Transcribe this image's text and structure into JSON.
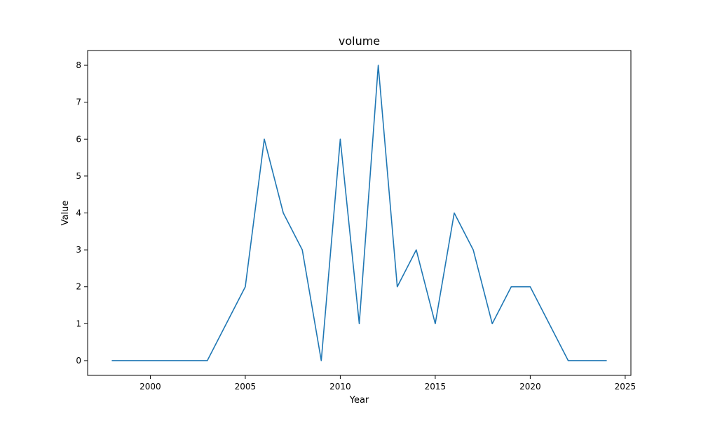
{
  "chart_data": {
    "type": "line",
    "title": "volume",
    "xlabel": "Year",
    "ylabel": "Value",
    "xlim": [
      1996.7,
      2025.3
    ],
    "ylim": [
      -0.4,
      8.4
    ],
    "xticks": [
      2000,
      2005,
      2010,
      2015,
      2020,
      2025
    ],
    "yticks": [
      0,
      1,
      2,
      3,
      4,
      5,
      6,
      7,
      8
    ],
    "grid": false,
    "line_color": "#1f77b4",
    "series": [
      {
        "x": [
          1998,
          1999,
          2000,
          2001,
          2002,
          2003,
          2004,
          2005,
          2006,
          2007,
          2008,
          2009,
          2010,
          2011,
          2012,
          2013,
          2014,
          2015,
          2016,
          2017,
          2018,
          2019,
          2020,
          2021,
          2022,
          2023,
          2024
        ],
        "values": [
          0,
          0,
          0,
          0,
          0,
          0,
          1,
          2,
          6,
          4,
          3,
          0,
          6,
          1,
          8,
          2,
          3,
          1,
          4,
          3,
          1,
          2,
          2,
          1,
          0,
          0,
          0
        ]
      }
    ]
  }
}
